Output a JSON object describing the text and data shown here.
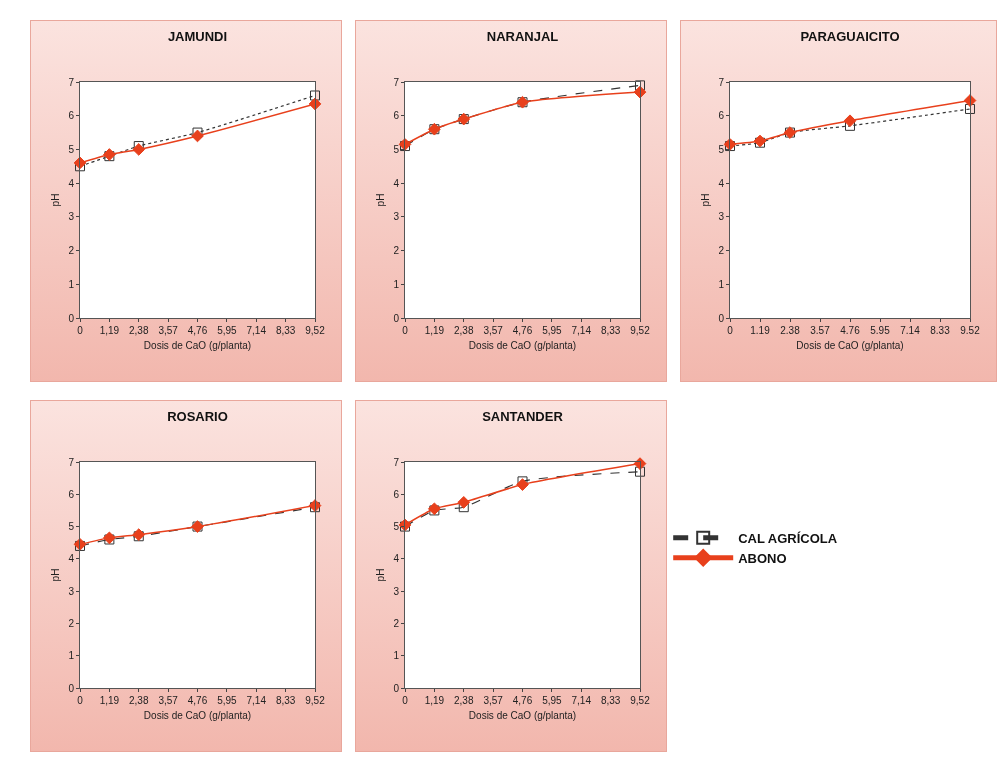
{
  "chart_data": [
    {
      "type": "line",
      "title": "JAMUNDI",
      "xlabel": "Dosis de CaO (g/planta)",
      "ylabel": "pH",
      "x": [
        0,
        1.19,
        2.38,
        4.76,
        9.52
      ],
      "xlim": [
        0,
        9.52
      ],
      "xticks": [
        0,
        {
          "value": 1.19,
          "label": "1,19"
        },
        {
          "value": 2.38,
          "label": "2,38"
        },
        {
          "value": 3.57,
          "label": "3,57"
        },
        {
          "value": 4.76,
          "label": "4,76"
        },
        {
          "value": 5.95,
          "label": "5,95"
        },
        {
          "value": 7.14,
          "label": "7,14"
        },
        {
          "value": 8.33,
          "label": "8,33"
        },
        {
          "value": 9.52,
          "label": "9,52"
        }
      ],
      "ylim": [
        0,
        7
      ],
      "yticks": [
        0,
        1,
        2,
        3,
        4,
        5,
        6,
        7
      ],
      "grid": false,
      "series": [
        {
          "color": "#333333",
          "marker": "square",
          "line_style": "dotted",
          "values": [
            4.5,
            4.8,
            5.1,
            5.5,
            6.6
          ]
        },
        {
          "color": "#e8401c",
          "marker": "diamond",
          "line_style": "solid",
          "values": [
            4.6,
            4.85,
            5.0,
            5.4,
            6.35
          ]
        }
      ]
    },
    {
      "type": "line",
      "title": "NARANJAL",
      "xlabel": "Dosis de CaO (g/planta)",
      "ylabel": "pH",
      "x": [
        0,
        1.19,
        2.38,
        4.76,
        9.52
      ],
      "xlim": [
        0,
        9.52
      ],
      "xticks": [
        0,
        {
          "value": 1.19,
          "label": "1,19"
        },
        {
          "value": 2.38,
          "label": "2,38"
        },
        {
          "value": 3.57,
          "label": "3,57"
        },
        {
          "value": 4.76,
          "label": "4,76"
        },
        {
          "value": 5.95,
          "label": "5,95"
        },
        {
          "value": 7.14,
          "label": "7,14"
        },
        {
          "value": 8.33,
          "label": "8,33"
        },
        {
          "value": 9.52,
          "label": "9,52"
        }
      ],
      "ylim": [
        0,
        7
      ],
      "yticks": [
        0,
        1,
        2,
        3,
        4,
        5,
        6,
        7
      ],
      "grid": false,
      "series": [
        {
          "color": "#333333",
          "marker": "square",
          "line_style": "dashed",
          "values": [
            5.1,
            5.6,
            5.9,
            6.4,
            6.9
          ]
        },
        {
          "color": "#e8401c",
          "marker": "diamond",
          "line_style": "solid",
          "values": [
            5.15,
            5.6,
            5.9,
            6.4,
            6.7
          ]
        }
      ]
    },
    {
      "type": "line",
      "title": "PARAGUAICITO",
      "xlabel": "Dosis de CaO (g/planta)",
      "ylabel": "pH",
      "x": [
        0,
        1.19,
        2.38,
        4.76,
        9.52
      ],
      "xlim": [
        0,
        9.52
      ],
      "xticks": [
        0,
        1.19,
        2.38,
        3.57,
        4.76,
        5.95,
        7.14,
        8.33,
        9.52
      ],
      "ylim": [
        0,
        7
      ],
      "yticks": [
        0,
        1,
        2,
        3,
        4,
        5,
        6,
        7
      ],
      "grid": false,
      "series": [
        {
          "color": "#333333",
          "marker": "square",
          "line_style": "dotted",
          "values": [
            5.1,
            5.2,
            5.5,
            5.7,
            6.2
          ]
        },
        {
          "color": "#e8401c",
          "marker": "diamond",
          "line_style": "solid",
          "values": [
            5.15,
            5.25,
            5.5,
            5.85,
            6.45
          ]
        }
      ]
    },
    {
      "type": "line",
      "title": "ROSARIO",
      "xlabel": "Dosis de CaO (g/planta)",
      "ylabel": "pH",
      "x": [
        0,
        1.19,
        2.38,
        4.76,
        9.52
      ],
      "xlim": [
        0,
        9.52
      ],
      "xticks": [
        0,
        {
          "value": 1.19,
          "label": "1,19"
        },
        {
          "value": 2.38,
          "label": "2,38"
        },
        {
          "value": 3.57,
          "label": "3,57"
        },
        {
          "value": 4.76,
          "label": "4,76"
        },
        {
          "value": 5.95,
          "label": "5,95"
        },
        {
          "value": 7.14,
          "label": "7,14"
        },
        {
          "value": 8.33,
          "label": "8,33"
        },
        {
          "value": 9.52,
          "label": "9,52"
        }
      ],
      "ylim": [
        0,
        7
      ],
      "yticks": [
        0,
        1,
        2,
        3,
        4,
        5,
        6,
        7
      ],
      "grid": false,
      "series": [
        {
          "color": "#333333",
          "marker": "square",
          "line_style": "dashed",
          "values": [
            4.4,
            4.6,
            4.7,
            5.0,
            5.6
          ]
        },
        {
          "color": "#e8401c",
          "marker": "diamond",
          "line_style": "solid",
          "values": [
            4.45,
            4.65,
            4.75,
            5.0,
            5.65
          ]
        }
      ]
    },
    {
      "type": "line",
      "title": "SANTANDER",
      "xlabel": "Dosis de CaO (g/planta)",
      "ylabel": "pH",
      "x": [
        0,
        1.19,
        2.38,
        4.76,
        9.52
      ],
      "xlim": [
        0,
        9.52
      ],
      "xticks": [
        0,
        {
          "value": 1.19,
          "label": "1,19"
        },
        {
          "value": 2.38,
          "label": "2,38"
        },
        {
          "value": 3.57,
          "label": "3,57"
        },
        {
          "value": 4.76,
          "label": "4,76"
        },
        {
          "value": 5.95,
          "label": "5,95"
        },
        {
          "value": 7.14,
          "label": "7,14"
        },
        {
          "value": 8.33,
          "label": "8,33"
        },
        {
          "value": 9.52,
          "label": "9,52"
        }
      ],
      "ylim": [
        0,
        7
      ],
      "yticks": [
        0,
        1,
        2,
        3,
        4,
        5,
        6,
        7
      ],
      "grid": false,
      "legend": "right",
      "series": [
        {
          "name": "CAL AGRÍCOLA",
          "color": "#333333",
          "marker": "square",
          "line_style": "dashed",
          "values": [
            5.0,
            5.5,
            5.6,
            6.4,
            6.7
          ]
        },
        {
          "name": "ABONO",
          "color": "#e8401c",
          "marker": "diamond",
          "line_style": "solid",
          "values": [
            5.05,
            5.55,
            5.75,
            6.3,
            6.95
          ]
        }
      ]
    }
  ]
}
